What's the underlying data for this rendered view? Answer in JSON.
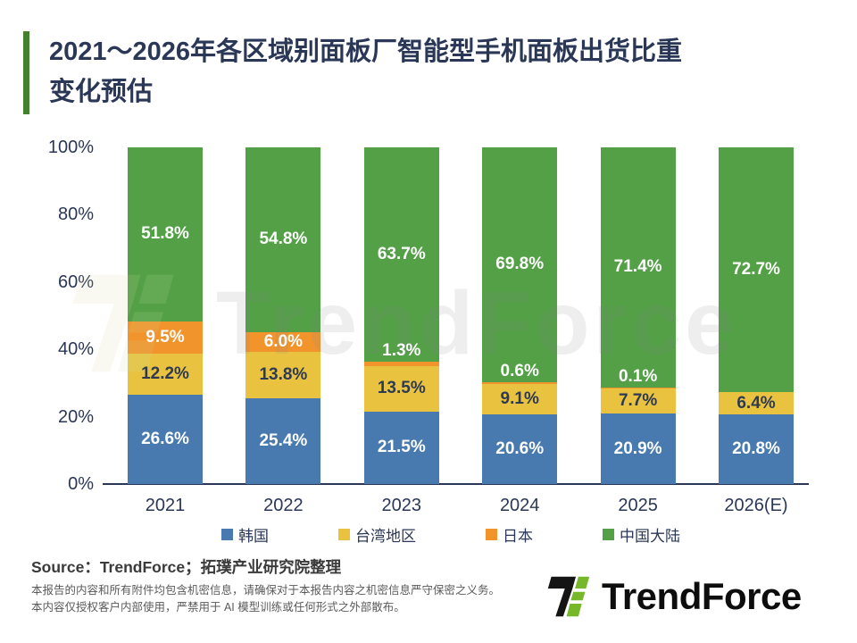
{
  "header": {
    "title_line1": "2021～2026年各区域别面板厂智能型手机面板出货比重",
    "title_line2": "变化预估"
  },
  "chart_data": {
    "type": "bar",
    "stacked": true,
    "title": "2021～2026年各区域别面板厂智能型手机面板出货比重变化预估",
    "unit": "%",
    "categories": [
      "2021",
      "2022",
      "2023",
      "2024",
      "2025",
      "2026(E)"
    ],
    "series": [
      {
        "name": "韩国",
        "color": "#4879AF",
        "label_color": "#FFFFFF",
        "values": [
          26.6,
          25.4,
          21.5,
          20.6,
          20.9,
          20.8
        ]
      },
      {
        "name": "台湾地区",
        "color": "#E9C340",
        "label_color": "#2E3A52",
        "values": [
          12.2,
          13.8,
          13.5,
          9.1,
          7.7,
          6.4
        ]
      },
      {
        "name": "日本",
        "color": "#F2942C",
        "label_color": "#FFFFFF",
        "values": [
          9.5,
          6.0,
          1.3,
          0.6,
          0.1,
          0.0
        ]
      },
      {
        "name": "中国大陆",
        "color": "#53A046",
        "label_color": "#FFFFFF",
        "values": [
          51.8,
          54.8,
          63.7,
          69.8,
          71.4,
          72.7
        ]
      }
    ],
    "ylim": [
      0,
      100
    ],
    "yticks": [
      "0%",
      "20%",
      "40%",
      "60%",
      "80%",
      "100%"
    ],
    "xlabel": "",
    "ylabel": "",
    "grid": false,
    "legend_position": "bottom"
  },
  "watermark": {
    "text": "TrendForce"
  },
  "footer": {
    "source": "Source：TrendForce；拓璞产业研究院整理",
    "disclaimer_line1": "本报告的内容和所有附件均包含机密信息，请确保对于本报告内容之机密信息严守保密之义务。",
    "disclaimer_line2": "本内容仅授权客户内部使用，严禁用于 AI 模型训练或任何形式之外部散布。",
    "logo_text": "TrendForce"
  },
  "colors": {
    "title_navy": "#2A3756",
    "accent_green": "#44812E",
    "logo_green": "#76B82A",
    "logo_black": "#141414"
  }
}
